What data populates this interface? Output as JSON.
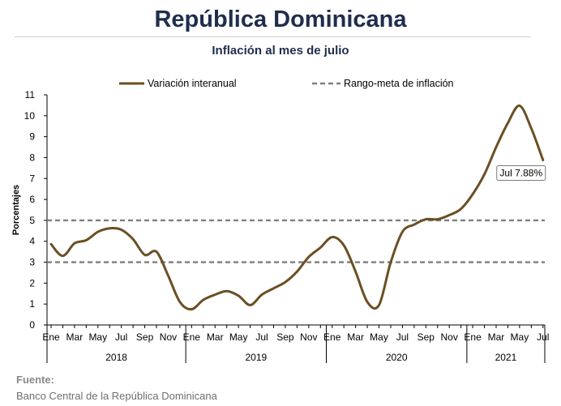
{
  "header": {
    "title": "República Dominicana",
    "subtitle": "Inflación al mes de julio"
  },
  "source": {
    "label": "Fuente:",
    "text": "Banco Central de la República Dominicana"
  },
  "colors": {
    "series": "#6b4f24",
    "target": "#7f7f7f",
    "axis": "#000000",
    "title": "#1f2d4d"
  },
  "chart_data": {
    "type": "line",
    "ylabel": "Porcentajes",
    "ylim": [
      0,
      11
    ],
    "yticks": [
      0,
      1,
      2,
      3,
      4,
      5,
      6,
      7,
      8,
      9,
      10,
      11
    ],
    "grid": false,
    "legend_placement": "top",
    "month_labels": [
      "Ene",
      "Mar",
      "May",
      "Jul",
      "Sep",
      "Nov",
      "Ene",
      "Mar",
      "May",
      "Jul",
      "Sep",
      "Nov",
      "Ene",
      "Mar",
      "May",
      "Jul",
      "Sep",
      "Nov",
      "Ene",
      "Mar",
      "May",
      "Jul"
    ],
    "years": [
      {
        "label": "2018",
        "months": 12
      },
      {
        "label": "2019",
        "months": 12
      },
      {
        "label": "2020",
        "months": 12
      },
      {
        "label": "2021",
        "months": 7
      }
    ],
    "series": [
      {
        "name": "Variación interanual",
        "style": "solid",
        "x": [
          "2018-01",
          "2018-02",
          "2018-03",
          "2018-04",
          "2018-05",
          "2018-06",
          "2018-07",
          "2018-08",
          "2018-09",
          "2018-10",
          "2018-11",
          "2018-12",
          "2019-01",
          "2019-02",
          "2019-03",
          "2019-04",
          "2019-05",
          "2019-06",
          "2019-07",
          "2019-08",
          "2019-09",
          "2019-10",
          "2019-11",
          "2019-12",
          "2020-01",
          "2020-02",
          "2020-03",
          "2020-04",
          "2020-05",
          "2020-06",
          "2020-07",
          "2020-08",
          "2020-09",
          "2020-10",
          "2020-11",
          "2020-12",
          "2021-01",
          "2021-02",
          "2021-03",
          "2021-04",
          "2021-05",
          "2021-06",
          "2021-07"
        ],
        "values": [
          3.86,
          3.3,
          3.9,
          4.05,
          4.45,
          4.62,
          4.55,
          4.1,
          3.35,
          3.5,
          2.35,
          1.1,
          0.75,
          1.2,
          1.45,
          1.62,
          1.4,
          0.95,
          1.45,
          1.75,
          2.05,
          2.55,
          3.25,
          3.7,
          4.2,
          3.8,
          2.55,
          1.1,
          0.95,
          3.0,
          4.45,
          4.8,
          5.05,
          5.05,
          5.25,
          5.55,
          6.25,
          7.2,
          8.5,
          9.65,
          10.48,
          9.4,
          7.88
        ]
      },
      {
        "name": "Rango-meta de inflación",
        "style": "dashed",
        "bands": [
          3,
          5
        ]
      }
    ],
    "annotation": {
      "text": "Jul 7.88%",
      "x": "2021-07",
      "y": 7.88
    }
  }
}
